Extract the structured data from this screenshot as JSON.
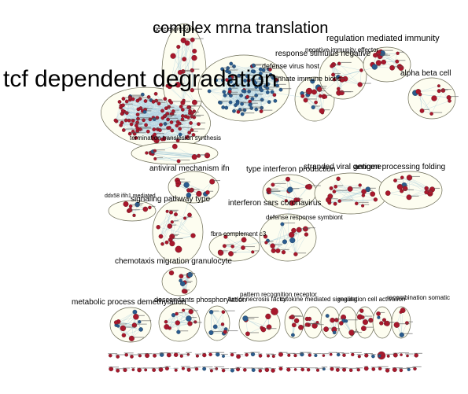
{
  "diagram": {
    "clusters": [
      {
        "id": "tcf",
        "label": "tcf dependent degradation",
        "font_size": 30
      },
      {
        "id": "complex",
        "label": "complex mrna translation",
        "font_size": 20
      },
      {
        "id": "gene",
        "label": "gene expression",
        "font_size": 7
      },
      {
        "id": "regulation",
        "label": "regulation mediated immunity",
        "font_size": 11
      },
      {
        "id": "negative",
        "label": "negative immunity effector",
        "font_size": 8
      },
      {
        "id": "response",
        "label": "response stimulus negative",
        "font_size": 10
      },
      {
        "id": "defense",
        "label": "defense virus host",
        "font_size": 9
      },
      {
        "id": "innate",
        "label": "innate immune biotic",
        "font_size": 9
      },
      {
        "id": "alpha",
        "label": "alpha beta cell",
        "font_size": 10
      },
      {
        "id": "termination",
        "label": "termination translesion synthesis",
        "font_size": 8
      },
      {
        "id": "antiviral",
        "label": "antiviral mechanism ifn",
        "font_size": 10
      },
      {
        "id": "typeifn",
        "label": "type interferon production",
        "font_size": 10
      },
      {
        "id": "stranded",
        "label": "stranded viral genome",
        "font_size": 10
      },
      {
        "id": "antigen",
        "label": "antigen processing folding",
        "font_size": 10
      },
      {
        "id": "ddx58",
        "label": "ddx58 ifih1 mediated",
        "font_size": 7
      },
      {
        "id": "signaling",
        "label": "signaling pathway type",
        "font_size": 10
      },
      {
        "id": "interferon",
        "label": "interferon sars coronavirus",
        "font_size": 10
      },
      {
        "id": "defresp",
        "label": "defense response symbiont",
        "font_size": 8
      },
      {
        "id": "fbrn",
        "label": "fbrn complement c3",
        "font_size": 8
      },
      {
        "id": "chemotaxis",
        "label": "chemotaxis migration granulocyte",
        "font_size": 10
      },
      {
        "id": "metabolic",
        "label": "metabolic process demethylation",
        "font_size": 10
      },
      {
        "id": "descendants",
        "label": "descendants phosphorylation",
        "font_size": 9
      },
      {
        "id": "tumor",
        "label": "tumor necrosis factor",
        "font_size": 8
      },
      {
        "id": "pattern",
        "label": "pattern recognition receptor",
        "font_size": 8
      },
      {
        "id": "cytokine",
        "label": "cytokine mediated signaling",
        "font_size": 8
      },
      {
        "id": "regulation2",
        "label": "regulation cell activation",
        "font_size": 8
      },
      {
        "id": "recombination",
        "label": "recombination somatic",
        "font_size": 8
      }
    ],
    "colors": {
      "node_primary": "#a8182c",
      "node_secondary": "#2a5c8e",
      "edge": "#9cc6d6",
      "cluster_fill": "#fdfdf0",
      "cluster_stroke": "#6b6b55"
    }
  }
}
